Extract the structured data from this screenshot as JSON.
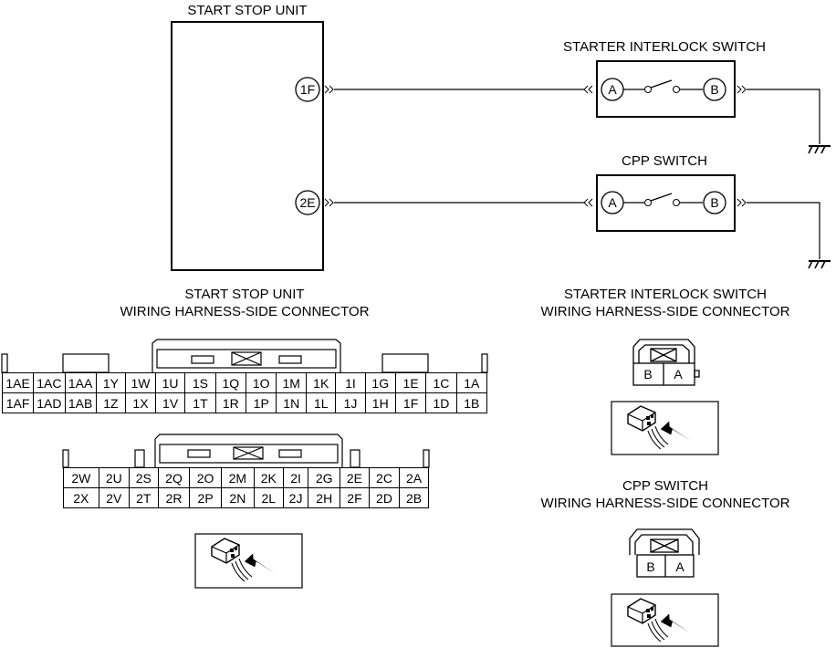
{
  "start_stop_unit": {
    "title": "START STOP UNIT",
    "terminal_1": "1F",
    "terminal_2": "2E"
  },
  "starter_interlock_switch": {
    "title": "STARTER INTERLOCK SWITCH",
    "terminal_a": "A",
    "terminal_b": "B"
  },
  "cpp_switch": {
    "title": "CPP SWITCH",
    "terminal_a": "A",
    "terminal_b": "B"
  },
  "ssu_connector": {
    "title_line1": "START STOP UNIT",
    "title_line2": "WIRING HARNESS-SIDE CONNECTOR",
    "connector1_rows": [
      [
        "1AE",
        "1AC",
        "1AA",
        "1Y",
        "1W",
        "1U",
        "1S",
        "1Q",
        "1O",
        "1M",
        "1K",
        "1I",
        "1G",
        "1E",
        "1C",
        "1A"
      ],
      [
        "1AF",
        "1AD",
        "1AB",
        "1Z",
        "1X",
        "1V",
        "1T",
        "1R",
        "1P",
        "1N",
        "1L",
        "1J",
        "1H",
        "1F",
        "1D",
        "1B"
      ]
    ],
    "connector2_rows": [
      [
        "2W",
        "2U",
        "2S",
        "2Q",
        "2O",
        "2M",
        "2K",
        "2I",
        "2G",
        "2E",
        "2C",
        "2A"
      ],
      [
        "2X",
        "2V",
        "2T",
        "2R",
        "2P",
        "2N",
        "2L",
        "2J",
        "2H",
        "2F",
        "2D",
        "2B"
      ]
    ]
  },
  "sis_connector": {
    "title_line1": "STARTER INTERLOCK SWITCH",
    "title_line2": "WIRING HARNESS-SIDE CONNECTOR",
    "pins": [
      "B",
      "A"
    ]
  },
  "cpp_connector": {
    "title_line1": "CPP SWITCH",
    "title_line2": "WIRING HARNESS-SIDE CONNECTOR",
    "pins": [
      "B",
      "A"
    ]
  }
}
